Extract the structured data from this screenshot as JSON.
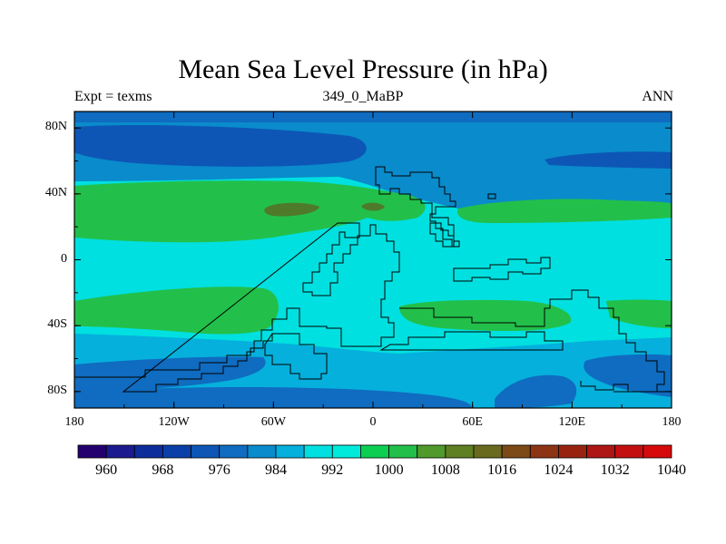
{
  "title": "Mean Sea Level Pressure (in hPa)",
  "subtitles": {
    "left": "Expt = texms",
    "center": "349_0_MaBP",
    "right": "ANN"
  },
  "map": {
    "lon_range": [
      -180,
      180
    ],
    "lat_range": [
      -90,
      90
    ],
    "lat_ticks": [
      {
        "value": 80,
        "label": "80N"
      },
      {
        "value": 40,
        "label": "40N"
      },
      {
        "value": 0,
        "label": "0"
      },
      {
        "value": -40,
        "label": "40S"
      },
      {
        "value": -80,
        "label": "80S"
      }
    ],
    "lon_ticks": [
      {
        "value": -180,
        "label": "180"
      },
      {
        "value": -120,
        "label": "120W"
      },
      {
        "value": -60,
        "label": "60W"
      },
      {
        "value": 0,
        "label": "0"
      },
      {
        "value": 60,
        "label": "60E"
      },
      {
        "value": 120,
        "label": "120E"
      },
      {
        "value": 180,
        "label": "180"
      }
    ]
  },
  "colorbar": {
    "colors": [
      "#24006e",
      "#1b1b8f",
      "#0d2c9c",
      "#0b3fa8",
      "#0d56b6",
      "#0f6cc0",
      "#0a8bcb",
      "#05b0dc",
      "#00e0e0",
      "#00eadb",
      "#0ccf52",
      "#22c04a",
      "#4f9a2a",
      "#5e7f22",
      "#6a6a1e",
      "#7c4a16",
      "#8c3414",
      "#982410",
      "#ad1614",
      "#c40f10",
      "#d60a0a"
    ],
    "levels": [
      960,
      968,
      976,
      984,
      992,
      1000,
      1008,
      1016,
      1024,
      1032,
      1040
    ]
  },
  "fill_colors": {
    "deep_low": "#0d56b6",
    "low": "#0f6cc0",
    "mid_low": "#0a8bcb",
    "mid": "#05b0dc",
    "neutral": "#00e0e0",
    "high": "#22c04a",
    "very_high": "#4f7a2a"
  }
}
